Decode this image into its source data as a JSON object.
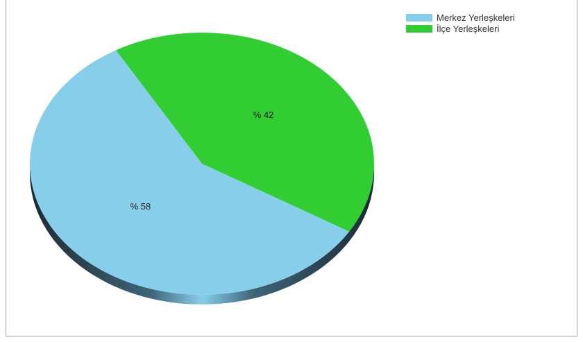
{
  "chart_data": {
    "type": "pie",
    "style": "3d",
    "categories": [
      "Merkez Yerleşkeleri",
      "İlçe Yerleşkeleri"
    ],
    "values": [
      58,
      42
    ],
    "data_labels": [
      "% 58",
      "% 42"
    ],
    "colors": [
      "#87ceeb",
      "#32cd32"
    ],
    "legend_position": "top-right"
  },
  "legend": {
    "items": [
      {
        "label": "Merkez Yerleşkeleri",
        "color": "#87ceeb"
      },
      {
        "label": "İlçe Yerleşkeleri",
        "color": "#32cd32"
      }
    ]
  }
}
